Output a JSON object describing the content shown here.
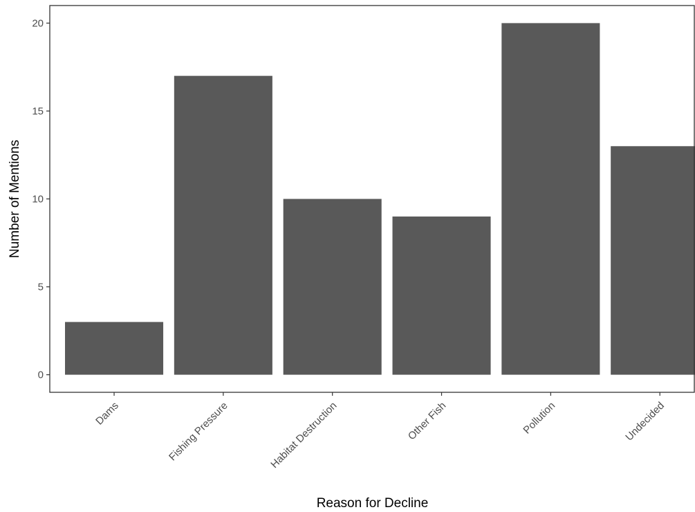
{
  "chart_data": {
    "type": "bar",
    "categories": [
      "Dams",
      "Fishing Pressure",
      "Habitat Destruction",
      "Other Fish",
      "Pollution",
      "Undecided"
    ],
    "values": [
      3,
      17,
      10,
      9,
      20,
      13
    ],
    "xlabel": "Reason for Decline",
    "ylabel": "Number of Mentions",
    "ylim": [
      -1,
      21
    ],
    "yticks": [
      0,
      5,
      10,
      15,
      20
    ],
    "grid": false,
    "bar_color": "#595959"
  }
}
